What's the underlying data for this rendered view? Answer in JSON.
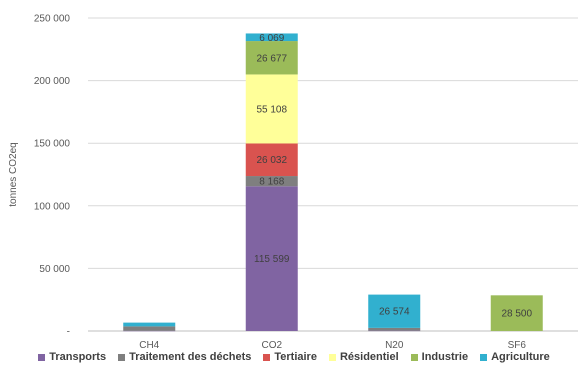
{
  "chart_data": {
    "type": "bar",
    "stacked": true,
    "categories": [
      "CH4",
      "CO2",
      "N20",
      "SF6"
    ],
    "ylabel": "tonnes CO2eq",
    "ylim": [
      0,
      250000
    ],
    "yticks": [
      0,
      50000,
      100000,
      150000,
      200000,
      250000
    ],
    "ytick_labels": [
      "-",
      "50 000",
      "100 000",
      "150 000",
      "200 000",
      "250 000"
    ],
    "grid": true,
    "legend_position": "bottom",
    "series": [
      {
        "name": "Transports",
        "color": "#8064a2",
        "values": [
          200,
          115599,
          300,
          0
        ],
        "labels": [
          "",
          "115 599",
          "",
          ""
        ]
      },
      {
        "name": "Traitement des déchets",
        "color": "#7f7f7f",
        "values": [
          3500,
          8168,
          2200,
          0
        ],
        "labels": [
          "",
          "8 168",
          "",
          ""
        ]
      },
      {
        "name": "Tertiaire",
        "color": "#d9534f",
        "values": [
          0,
          26032,
          0,
          0
        ],
        "labels": [
          "",
          "26 032",
          "",
          ""
        ]
      },
      {
        "name": "Résidentiel",
        "color": "#ffff99",
        "values": [
          0,
          55108,
          0,
          0
        ],
        "labels": [
          "",
          "55 108",
          "",
          ""
        ]
      },
      {
        "name": "Industrie",
        "color": "#9bbb59",
        "values": [
          0,
          26677,
          0,
          28500
        ],
        "labels": [
          "",
          "26 677",
          "",
          "28 500"
        ]
      },
      {
        "name": "Agriculture",
        "color": "#31b0cf",
        "values": [
          3000,
          6069,
          26574,
          0
        ],
        "labels": [
          "",
          "6 069",
          "26 574",
          ""
        ]
      }
    ]
  }
}
